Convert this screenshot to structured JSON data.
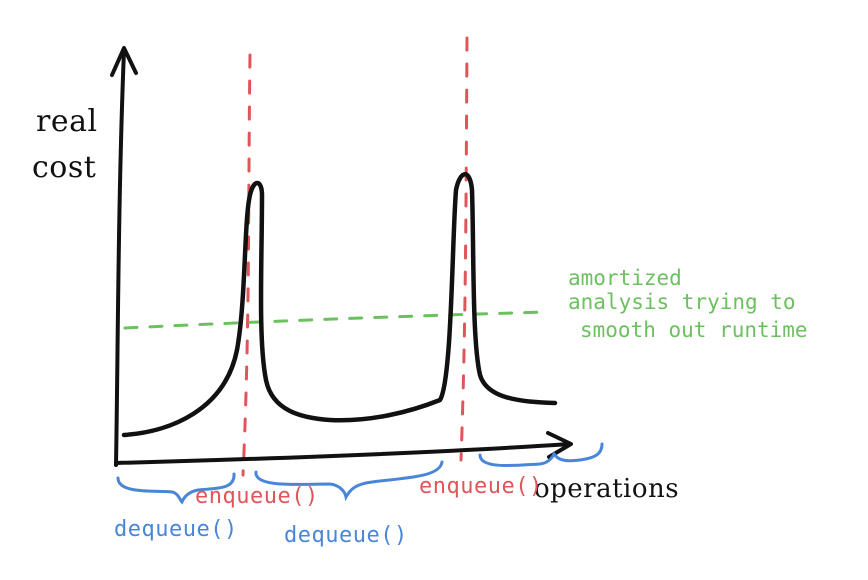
{
  "axes": {
    "y_label_line1": "real",
    "y_label_line2": "cost",
    "x_label": "operations"
  },
  "operations": {
    "enqueue_1": "enqueue()",
    "enqueue_2": "enqueue()",
    "dequeue_1": "dequeue()",
    "dequeue_2": "dequeue()"
  },
  "annotation": {
    "line1": "amortized",
    "line2": "analysis trying to",
    "line3": "smooth out runtime"
  },
  "colors": {
    "ink": "#111111",
    "enqueue": "#e0555a",
    "dequeue": "#4a86d8",
    "amortized": "#6cc05f"
  }
}
